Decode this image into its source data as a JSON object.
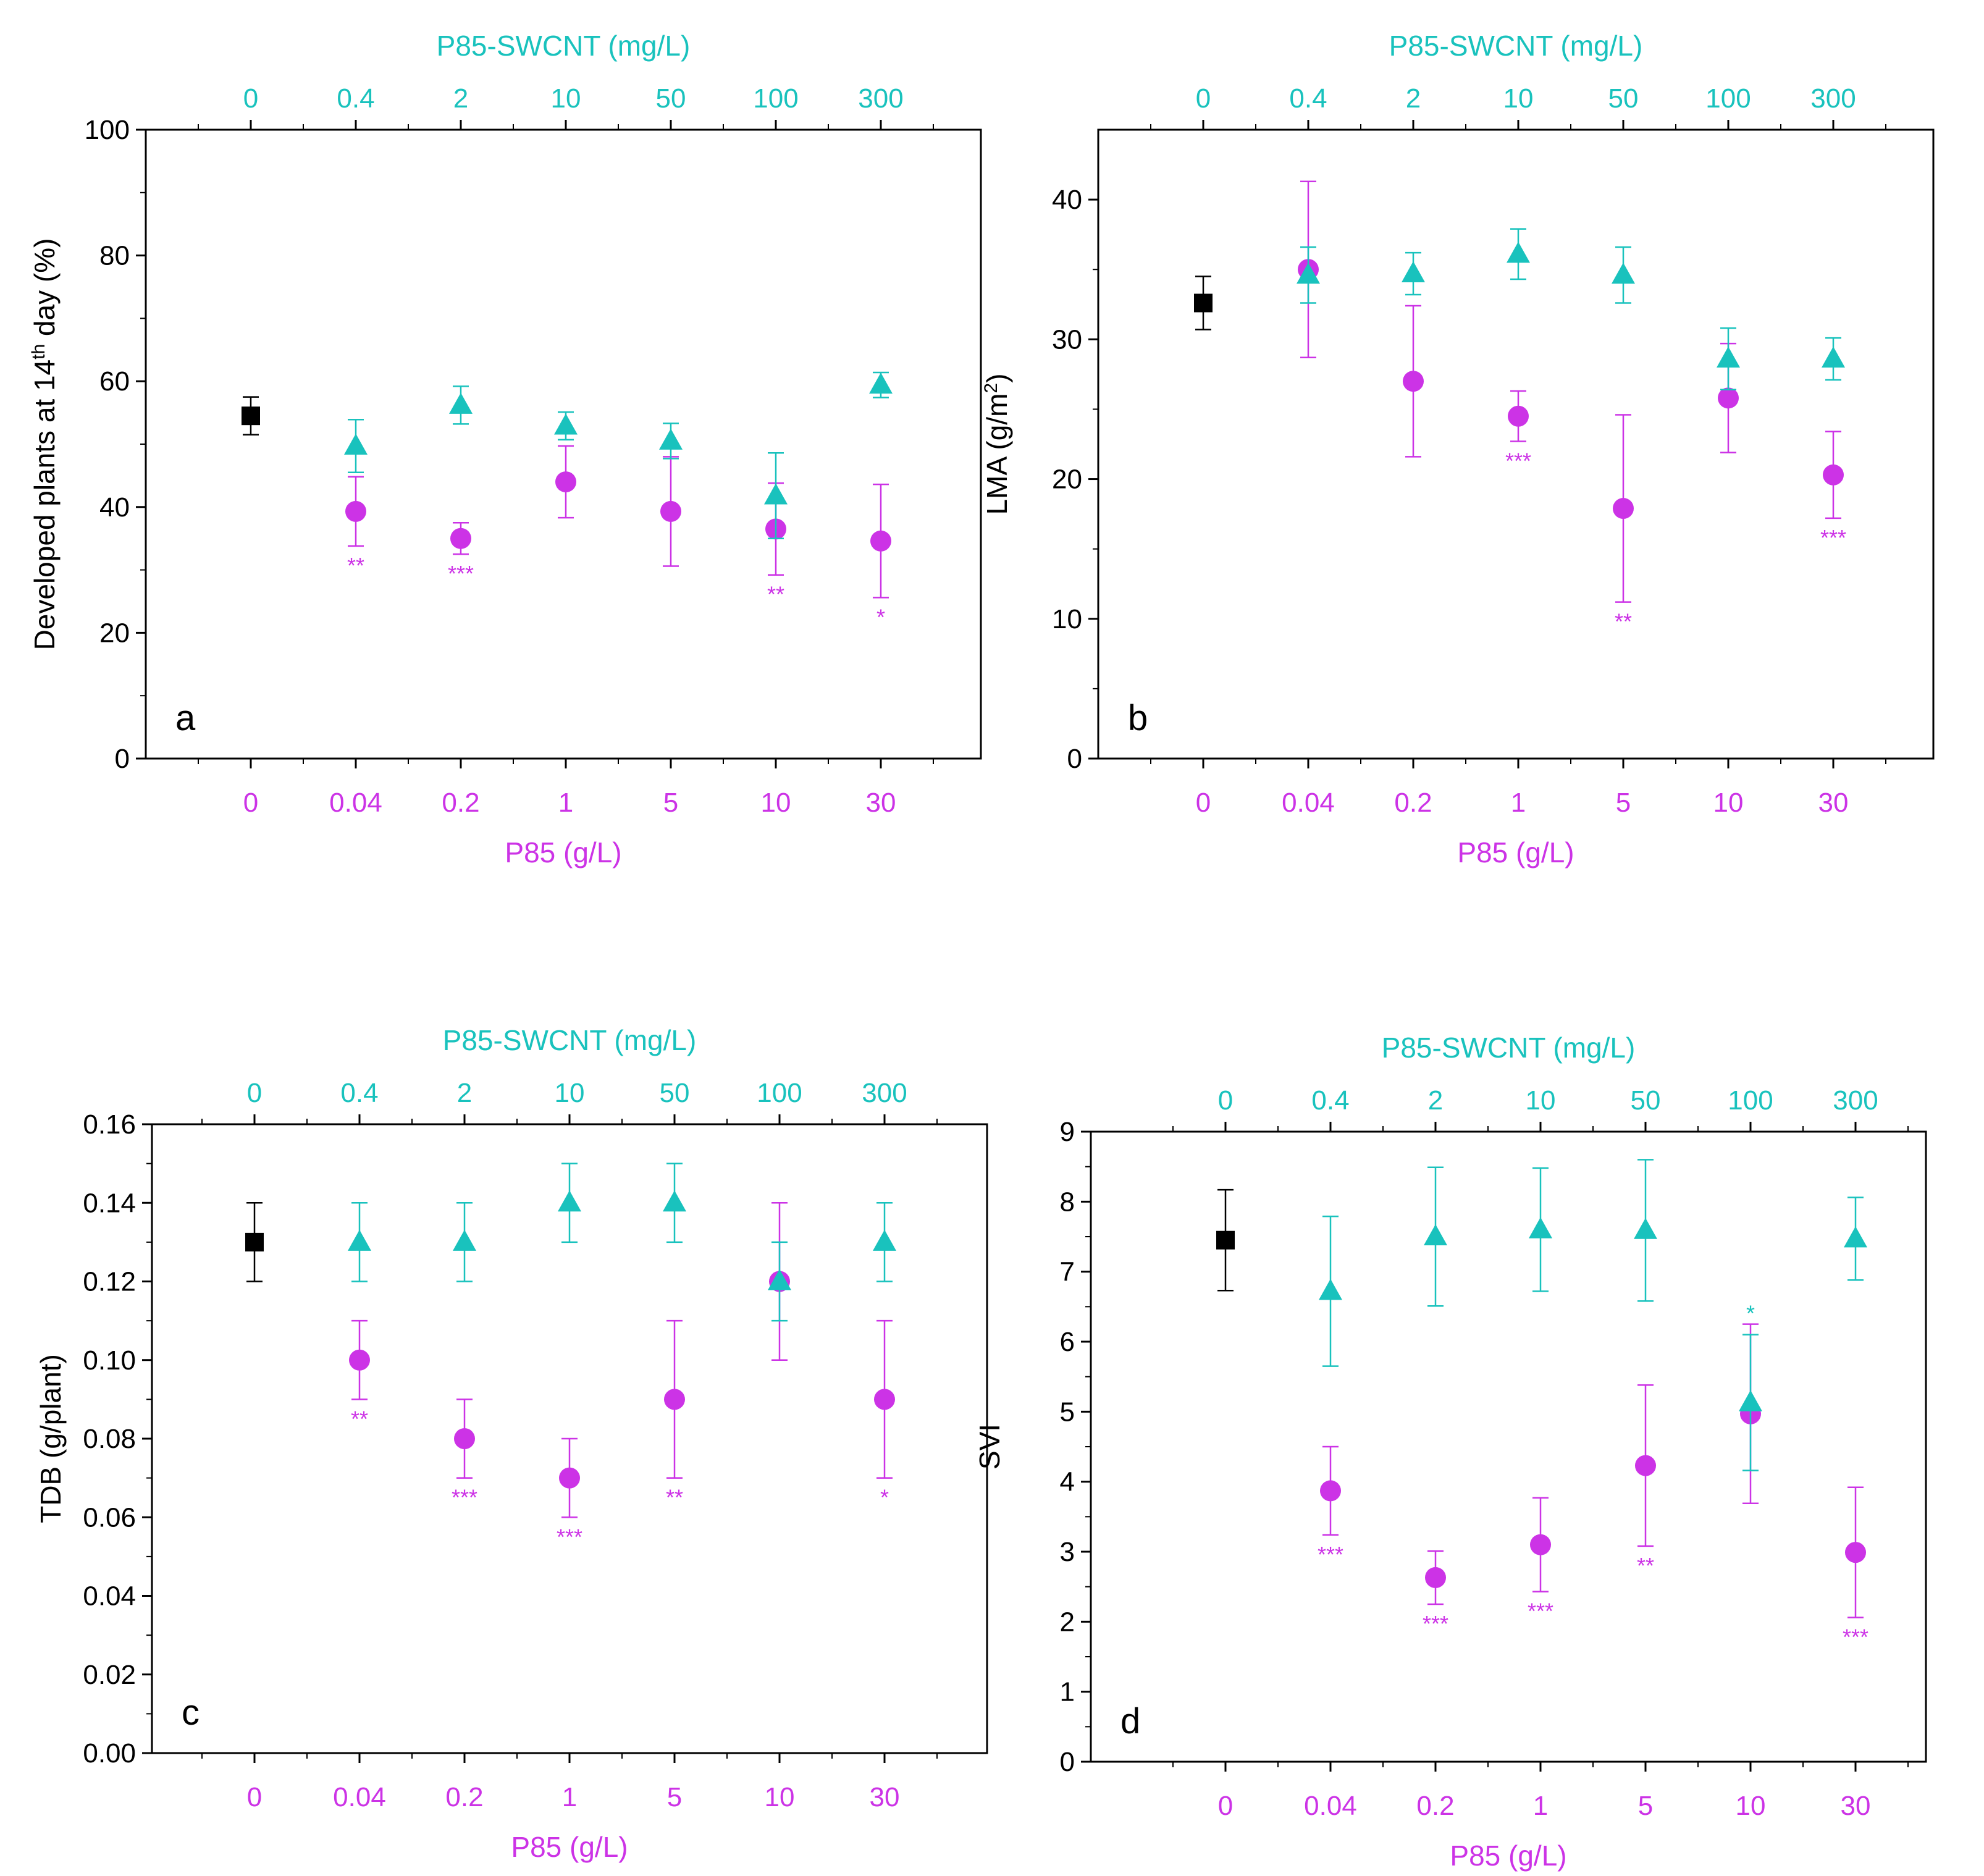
{
  "colors": {
    "control": "#000000",
    "p85": "#CC33E6",
    "swcnt": "#19C2BD",
    "axis": "#000000"
  },
  "chart_data": [
    {
      "panel": "a",
      "type": "scatter",
      "ylabel_parts": [
        "Developed plants at 14",
        "th",
        " day (%)"
      ],
      "ylim": [
        0,
        100
      ],
      "yticks": [
        "0",
        "20",
        "40",
        "60",
        "80",
        "100"
      ],
      "ytick_values": [
        0,
        20,
        40,
        60,
        80,
        100
      ],
      "xlabel_bottom": "P85 (g/L)",
      "xlabel_top": "P85-SWCNT (mg/L)",
      "categories_bottom": [
        "0",
        "0.04",
        "0.2",
        "1",
        "5",
        "10",
        "30"
      ],
      "categories_top": [
        "0",
        "0.4",
        "2",
        "10",
        "50",
        "100",
        "300"
      ],
      "control": {
        "value": 54.5,
        "err": 3.0
      },
      "series": [
        {
          "name": "P85",
          "marker": "circle",
          "values": [
            null,
            39.3,
            35.0,
            44.0,
            39.3,
            36.5,
            34.6
          ],
          "errors": [
            null,
            5.5,
            2.5,
            5.7,
            8.7,
            7.3,
            9.0
          ],
          "sig": [
            "",
            "**",
            "***",
            "",
            "",
            "**",
            "*"
          ]
        },
        {
          "name": "P85-SWCNT",
          "marker": "triangle",
          "values": [
            null,
            49.7,
            56.2,
            52.9,
            50.5,
            41.8,
            59.4
          ],
          "errors": [
            null,
            4.2,
            3.0,
            2.2,
            2.8,
            6.8,
            2.0
          ],
          "sig": [
            "",
            "",
            "",
            "",
            "",
            "",
            ""
          ]
        }
      ]
    },
    {
      "panel": "b",
      "type": "scatter",
      "ylabel_parts": [
        "LMA (g/m",
        "2",
        ")"
      ],
      "ylim": [
        0,
        45
      ],
      "yticks": [
        "0",
        "10",
        "20",
        "30",
        "40"
      ],
      "ytick_values": [
        0,
        10,
        20,
        30,
        40
      ],
      "xlabel_bottom": "P85 (g/L)",
      "xlabel_top": "P85-SWCNT (mg/L)",
      "categories_bottom": [
        "0",
        "0.04",
        "0.2",
        "1",
        "5",
        "10",
        "30"
      ],
      "categories_top": [
        "0",
        "0.4",
        "2",
        "10",
        "50",
        "100",
        "300"
      ],
      "control": {
        "value": 32.6,
        "err": 1.9
      },
      "series": [
        {
          "name": "P85",
          "marker": "circle",
          "values": [
            null,
            35.0,
            27.0,
            24.5,
            17.9,
            25.8,
            20.3
          ],
          "errors": [
            null,
            6.3,
            5.4,
            1.8,
            6.7,
            3.9,
            3.1
          ],
          "sig": [
            "",
            "",
            "",
            "***",
            "**",
            "",
            "***"
          ]
        },
        {
          "name": "P85-SWCNT",
          "marker": "triangle",
          "values": [
            null,
            34.6,
            34.7,
            36.1,
            34.6,
            28.6,
            28.6
          ],
          "errors": [
            null,
            2.0,
            1.5,
            1.8,
            2.0,
            2.2,
            1.5
          ],
          "sig": [
            "",
            "",
            "",
            "",
            "",
            "",
            ""
          ]
        }
      ]
    },
    {
      "panel": "c",
      "type": "scatter",
      "ylabel_parts": [
        "TDB (g/plant)"
      ],
      "ylim": [
        0,
        0.16
      ],
      "yticks": [
        "0.00",
        "0.02",
        "0.04",
        "0.06",
        "0.08",
        "0.10",
        "0.12",
        "0.14",
        "0.16"
      ],
      "ytick_values": [
        0,
        0.02,
        0.04,
        0.06,
        0.08,
        0.1,
        0.12,
        0.14,
        0.16
      ],
      "xlabel_bottom": "P85 (g/L)",
      "xlabel_top": "P85-SWCNT (mg/L)",
      "categories_bottom": [
        "0",
        "0.04",
        "0.2",
        "1",
        "5",
        "10",
        "30"
      ],
      "categories_top": [
        "0",
        "0.4",
        "2",
        "10",
        "50",
        "100",
        "300"
      ],
      "control": {
        "value": 0.13,
        "err": 0.01
      },
      "series": [
        {
          "name": "P85",
          "marker": "circle",
          "values": [
            null,
            0.1,
            0.08,
            0.07,
            0.09,
            0.12,
            0.09
          ],
          "errors": [
            null,
            0.01,
            0.01,
            0.01,
            0.02,
            0.02,
            0.02
          ],
          "sig": [
            "",
            "**",
            "***",
            "***",
            "**",
            "",
            "*"
          ]
        },
        {
          "name": "P85-SWCNT",
          "marker": "triangle",
          "values": [
            null,
            0.13,
            0.13,
            0.14,
            0.14,
            0.12,
            0.13
          ],
          "errors": [
            null,
            0.01,
            0.01,
            0.01,
            0.01,
            0.01,
            0.01
          ],
          "sig": [
            "",
            "",
            "",
            "",
            "",
            "",
            ""
          ]
        }
      ]
    },
    {
      "panel": "d",
      "type": "scatter",
      "ylabel_parts": [
        "SVI"
      ],
      "ylim": [
        0,
        9
      ],
      "yticks": [
        "0",
        "1",
        "2",
        "3",
        "4",
        "5",
        "6",
        "7",
        "8",
        "9"
      ],
      "ytick_values": [
        0,
        1,
        2,
        3,
        4,
        5,
        6,
        7,
        8,
        9
      ],
      "xlabel_bottom": "P85 (g/L)",
      "xlabel_top": "P85-SWCNT (mg/L)",
      "categories_bottom": [
        "0",
        "0.04",
        "0.2",
        "1",
        "5",
        "10",
        "30"
      ],
      "categories_top": [
        "0",
        "0.4",
        "2",
        "10",
        "50",
        "100",
        "300"
      ],
      "control": {
        "value": 7.45,
        "err": 0.72
      },
      "series": [
        {
          "name": "P85",
          "marker": "circle",
          "values": [
            null,
            3.87,
            2.63,
            3.1,
            4.23,
            4.97,
            2.99
          ],
          "errors": [
            null,
            0.63,
            0.38,
            0.67,
            1.15,
            1.28,
            0.93
          ],
          "sig": [
            "",
            "***",
            "***",
            "***",
            "**",
            "",
            "***"
          ]
        },
        {
          "name": "P85-SWCNT",
          "marker": "triangle",
          "values": [
            null,
            6.72,
            7.5,
            7.6,
            7.59,
            5.13,
            7.47
          ],
          "errors": [
            null,
            1.07,
            0.99,
            0.88,
            1.01,
            0.97,
            0.59
          ],
          "sig": [
            "",
            "",
            "",
            "",
            "",
            "*",
            ""
          ]
        }
      ]
    }
  ]
}
